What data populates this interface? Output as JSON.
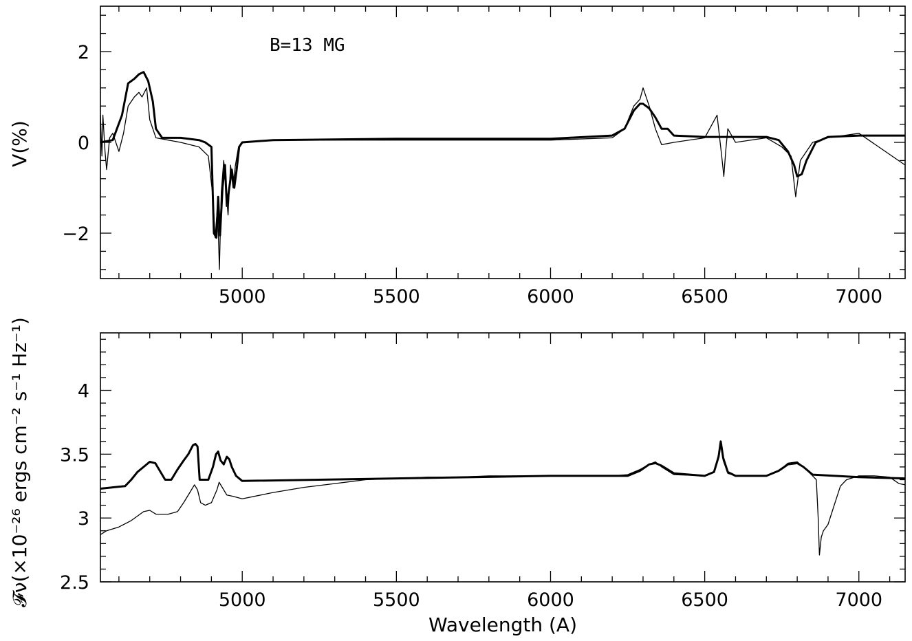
{
  "chart_data": [
    {
      "type": "line",
      "panel": "top",
      "title": "",
      "annotation": "B=13 MG",
      "xlabel": "",
      "ylabel": "V(%)",
      "xlim": [
        4540,
        7150
      ],
      "ylim": [
        -3,
        3
      ],
      "xticks": [
        5000,
        5500,
        6000,
        6500,
        7000
      ],
      "xtick_labels": [
        "5000",
        "5500",
        "6000",
        "6500",
        "7000"
      ],
      "yticks": [
        -2,
        0,
        2
      ],
      "ytick_labels": [
        "−2",
        "0",
        "2"
      ],
      "series": [
        {
          "style": "model",
          "x": [
            4540,
            4580,
            4610,
            4630,
            4650,
            4665,
            4680,
            4695,
            4710,
            4720,
            4740,
            4800,
            4860,
            4880,
            4900,
            4908,
            4916,
            4922,
            4928,
            4936,
            4944,
            4950,
            4958,
            4966,
            4974,
            4982,
            4990,
            5000,
            5100,
            5500,
            6000,
            6200,
            6240,
            6270,
            6290,
            6300,
            6320,
            6340,
            6360,
            6380,
            6400,
            6500,
            6600,
            6700,
            6740,
            6770,
            6790,
            6800,
            6815,
            6830,
            6860,
            6900,
            7000,
            7150
          ],
          "y": [
            0.0,
            0.05,
            0.6,
            1.3,
            1.4,
            1.5,
            1.55,
            1.35,
            0.9,
            0.3,
            0.1,
            0.1,
            0.05,
            0.0,
            -0.1,
            -2.0,
            -2.1,
            -1.2,
            -2.05,
            -1.0,
            -0.5,
            -1.4,
            -1.0,
            -0.6,
            -1.0,
            -0.6,
            -0.1,
            0.0,
            0.05,
            0.08,
            0.08,
            0.15,
            0.3,
            0.7,
            0.85,
            0.85,
            0.75,
            0.55,
            0.3,
            0.3,
            0.15,
            0.12,
            0.12,
            0.12,
            0.05,
            -0.2,
            -0.5,
            -0.75,
            -0.7,
            -0.4,
            0.0,
            0.12,
            0.15,
            0.15
          ]
        },
        {
          "style": "observed",
          "x": [
            4540,
            4545,
            4548,
            4555,
            4560,
            4570,
            4580,
            4590,
            4600,
            4615,
            4630,
            4650,
            4665,
            4675,
            4690,
            4700,
            4720,
            4760,
            4800,
            4860,
            4890,
            4905,
            4912,
            4920,
            4926,
            4932,
            4940,
            4948,
            4954,
            4962,
            4970,
            4978,
            4988,
            5000,
            5100,
            5500,
            6000,
            6200,
            6240,
            6270,
            6290,
            6300,
            6320,
            6340,
            6360,
            6400,
            6500,
            6540,
            6555,
            6562,
            6568,
            6575,
            6600,
            6700,
            6750,
            6780,
            6795,
            6810,
            6850,
            6900,
            7000,
            7150
          ],
          "y": [
            0.6,
            -0.3,
            0.6,
            -0.2,
            -0.6,
            0.1,
            0.2,
            0.0,
            -0.2,
            0.2,
            0.8,
            1.0,
            1.1,
            1.0,
            1.2,
            0.5,
            0.1,
            0.05,
            0.0,
            -0.1,
            -0.3,
            -1.2,
            -2.1,
            -1.4,
            -2.8,
            -1.1,
            -0.4,
            -1.1,
            -1.6,
            -0.5,
            -1.0,
            -0.5,
            -0.1,
            0.0,
            0.05,
            0.05,
            0.05,
            0.1,
            0.3,
            0.8,
            0.95,
            1.2,
            0.8,
            0.3,
            -0.05,
            0.0,
            0.1,
            0.6,
            -0.3,
            -0.75,
            -0.2,
            0.3,
            0.0,
            0.1,
            -0.1,
            -0.3,
            -1.2,
            -0.4,
            0.0,
            0.1,
            0.2,
            -0.5
          ]
        }
      ]
    },
    {
      "type": "line",
      "panel": "bottom",
      "title": "",
      "xlabel": "Wavelength (A)",
      "ylabel": "𝓕ν(×10⁻²⁶ ergs cm⁻² s⁻¹ Hz⁻¹)",
      "xlim": [
        4540,
        7150
      ],
      "ylim": [
        2.5,
        4.45
      ],
      "xticks": [
        5000,
        5500,
        6000,
        6500,
        7000
      ],
      "xtick_labels": [
        "5000",
        "5500",
        "6000",
        "6500",
        "7000"
      ],
      "yticks": [
        2.5,
        3,
        3.5,
        4
      ],
      "ytick_labels": [
        "2.5",
        "3",
        "3.5",
        "4"
      ],
      "series": [
        {
          "style": "model",
          "x": [
            4540,
            4620,
            4640,
            4660,
            4680,
            4700,
            4718,
            4735,
            4750,
            4770,
            4790,
            4810,
            4825,
            4840,
            4848,
            4855,
            4862,
            4875,
            4890,
            4905,
            4915,
            4922,
            4930,
            4940,
            4950,
            4958,
            4966,
            4980,
            5000,
            5500,
            6000,
            6250,
            6290,
            6320,
            6340,
            6360,
            6400,
            6500,
            6530,
            6545,
            6552,
            6560,
            6575,
            6600,
            6700,
            6740,
            6770,
            6800,
            6820,
            6850,
            7000,
            7150
          ],
          "y": [
            3.23,
            3.25,
            3.3,
            3.36,
            3.4,
            3.44,
            3.43,
            3.36,
            3.3,
            3.3,
            3.38,
            3.45,
            3.5,
            3.57,
            3.58,
            3.56,
            3.3,
            3.3,
            3.3,
            3.4,
            3.5,
            3.52,
            3.45,
            3.42,
            3.48,
            3.46,
            3.4,
            3.33,
            3.29,
            3.31,
            3.33,
            3.33,
            3.37,
            3.42,
            3.43,
            3.41,
            3.35,
            3.33,
            3.36,
            3.48,
            3.6,
            3.47,
            3.36,
            3.33,
            3.33,
            3.37,
            3.42,
            3.43,
            3.4,
            3.34,
            3.32,
            3.31
          ]
        },
        {
          "style": "observed",
          "x": [
            4540,
            4560,
            4600,
            4640,
            4680,
            4700,
            4720,
            4760,
            4790,
            4810,
            4830,
            4845,
            4855,
            4865,
            4880,
            4900,
            4918,
            4925,
            4935,
            4950,
            4970,
            5000,
            5100,
            5200,
            5300,
            5400,
            5500,
            5600,
            5700,
            5800,
            5900,
            6000,
            6100,
            6200,
            6250,
            6290,
            6320,
            6340,
            6360,
            6400,
            6500,
            6530,
            6545,
            6552,
            6560,
            6575,
            6600,
            6700,
            6740,
            6770,
            6800,
            6820,
            6850,
            6862,
            6868,
            6872,
            6878,
            6885,
            6900,
            6920,
            6940,
            6960,
            7000,
            7050,
            7100,
            7130,
            7150
          ],
          "y": [
            2.87,
            2.9,
            2.93,
            2.98,
            3.05,
            3.06,
            3.03,
            3.03,
            3.05,
            3.12,
            3.2,
            3.26,
            3.22,
            3.12,
            3.1,
            3.12,
            3.22,
            3.28,
            3.24,
            3.18,
            3.17,
            3.15,
            3.2,
            3.24,
            3.27,
            3.3,
            3.31,
            3.32,
            3.32,
            3.33,
            3.33,
            3.33,
            3.33,
            3.33,
            3.34,
            3.38,
            3.42,
            3.44,
            3.4,
            3.34,
            3.33,
            3.36,
            3.5,
            3.57,
            3.45,
            3.35,
            3.33,
            3.33,
            3.37,
            3.43,
            3.44,
            3.4,
            3.33,
            3.3,
            3.0,
            2.71,
            2.85,
            2.9,
            2.95,
            3.1,
            3.25,
            3.3,
            3.33,
            3.33,
            3.32,
            3.27,
            3.26
          ]
        }
      ]
    }
  ]
}
